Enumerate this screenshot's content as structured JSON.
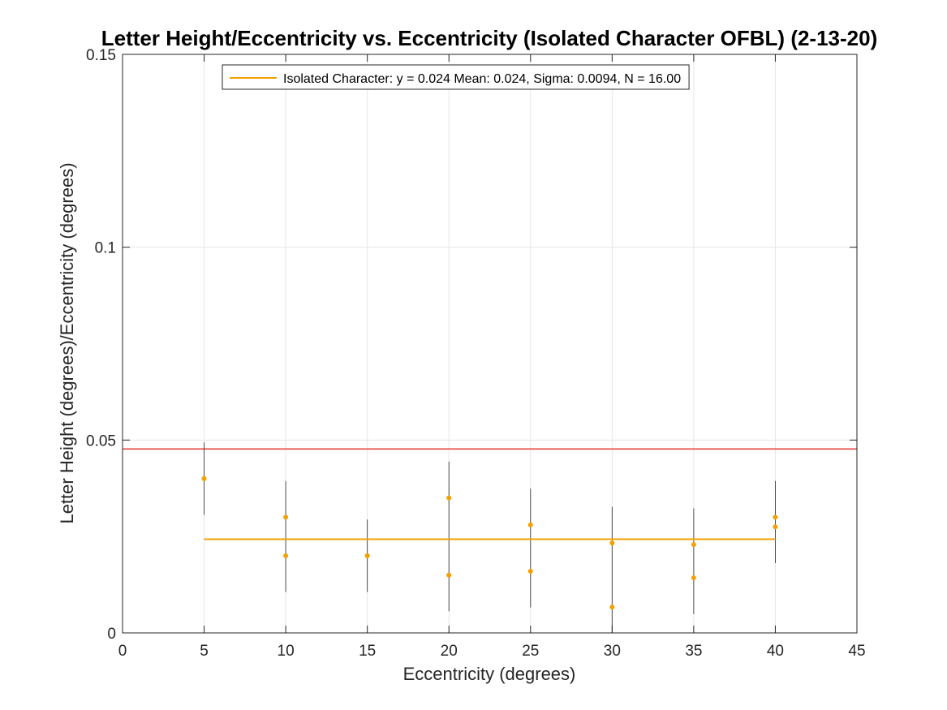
{
  "chart_data": {
    "type": "scatter",
    "title": "Letter Height/Eccentricity vs. Eccentricity (Isolated Character OFBL) (2-13-20)",
    "xlabel": "Eccentricity (degrees)",
    "ylabel": "Letter Height (degrees)/Eccentricity (degrees)",
    "xlim": [
      0,
      45
    ],
    "ylim": [
      0,
      0.15
    ],
    "xticks": [
      0,
      5,
      10,
      15,
      20,
      25,
      30,
      35,
      40,
      45
    ],
    "yticks": [
      0,
      0.05,
      0.1,
      0.15
    ],
    "xtick_labels": [
      "0",
      "5",
      "10",
      "15",
      "20",
      "25",
      "30",
      "35",
      "40",
      "45"
    ],
    "ytick_labels": [
      "0",
      "0.05",
      "0.1",
      "0.15"
    ],
    "grid": true,
    "legend_position": "top-center",
    "colors": {
      "points": "#f5a000",
      "fit": "#f5a000",
      "reference": "#e8453c",
      "errorbars": "#3a3a3a",
      "grid": "#e6e6e6"
    },
    "series": [
      {
        "name": "Isolated Character: y = 0.024 Mean: 0.024, Sigma: 0.0094, N = 16.00",
        "kind": "fit-line",
        "x": [
          5,
          40
        ],
        "y": [
          0.0243,
          0.0243
        ]
      },
      {
        "kind": "points",
        "points": [
          {
            "x": 5,
            "y": 0.04
          },
          {
            "x": 5,
            "y": 0.04
          },
          {
            "x": 10,
            "y": 0.03
          },
          {
            "x": 10,
            "y": 0.02
          },
          {
            "x": 15,
            "y": 0.02
          },
          {
            "x": 15,
            "y": 0.02
          },
          {
            "x": 20,
            "y": 0.035
          },
          {
            "x": 20,
            "y": 0.015
          },
          {
            "x": 25,
            "y": 0.028
          },
          {
            "x": 25,
            "y": 0.016
          },
          {
            "x": 30,
            "y": 0.0233
          },
          {
            "x": 30,
            "y": 0.0067
          },
          {
            "x": 35,
            "y": 0.0229
          },
          {
            "x": 35,
            "y": 0.0143
          },
          {
            "x": 40,
            "y": 0.03
          },
          {
            "x": 40,
            "y": 0.0275
          }
        ]
      },
      {
        "kind": "reference-line",
        "y": 0.0477
      }
    ],
    "errorbars": [
      {
        "x": 5,
        "low": 0.0306,
        "high": 0.0494
      },
      {
        "x": 10,
        "low": 0.0106,
        "high": 0.0394
      },
      {
        "x": 15,
        "low": 0.0106,
        "high": 0.0294
      },
      {
        "x": 20,
        "low": 0.0056,
        "high": 0.0444
      },
      {
        "x": 25,
        "low": 0.0066,
        "high": 0.0374
      },
      {
        "x": 30,
        "low": 0.0,
        "high": 0.0327
      },
      {
        "x": 35,
        "low": 0.0049,
        "high": 0.0323
      },
      {
        "x": 40,
        "low": 0.0181,
        "high": 0.0394
      }
    ]
  }
}
